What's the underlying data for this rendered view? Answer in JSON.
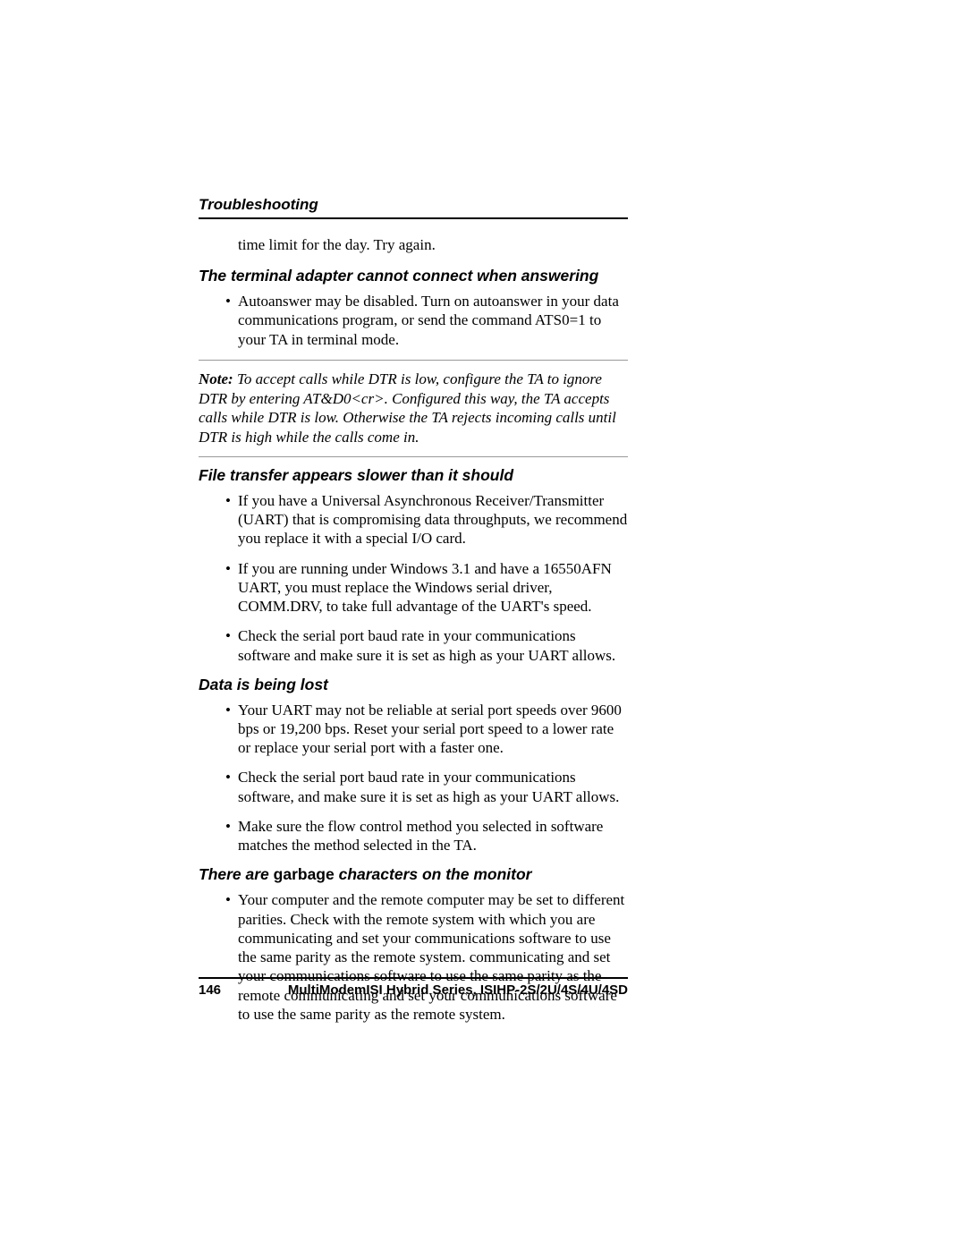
{
  "header": {
    "title": "Troubleshooting"
  },
  "continuation_text": "time limit for the day. Try again.",
  "sections": {
    "s1": {
      "heading": "The terminal adapter cannot connect when answering",
      "bullets": [
        "Autoanswer may be disabled. Turn on autoanswer in your data communications program, or send the command ATS0=1 to your TA in terminal mode."
      ]
    },
    "note": {
      "label": "Note:",
      "text": " To accept calls while DTR is low, configure the TA to ignore DTR by entering AT&D0<cr>. Configured this way, the TA accepts calls while DTR is low. Otherwise the TA rejects incoming calls until DTR is high while the calls come in."
    },
    "s2": {
      "heading": "File transfer appears slower than it should",
      "bullets": [
        "If you have a Universal Asynchronous Receiver/Transmitter (UART) that is compromising data throughputs, we recommend you replace it with a special I/O card.",
        "If you are running under Windows 3.1 and have a 16550AFN UART, you must replace the Windows serial driver, COMM.DRV, to take full advantage of the UART's speed.",
        "Check the serial port baud rate in your communications software and make sure it is set as high as your UART allows."
      ]
    },
    "s3": {
      "heading": "Data is being lost",
      "bullets": [
        "Your UART may not be reliable at serial port speeds over 9600 bps or 19,200 bps. Reset your serial port speed to a lower rate or replace your serial port with a faster one.",
        "Check the serial port baud rate in your communications software, and make sure it is set as high as your UART allows.",
        "Make sure the flow control method you selected in software matches the method selected in the TA."
      ]
    },
    "s4": {
      "heading_pre": "There are ",
      "heading_bold": "garbage",
      "heading_post": " characters on the monitor",
      "bullets": [
        "Your computer and the remote computer may be set to different parities. Check with the remote system with which you are communicating and set your communications software to use the same parity as the remote system. communicating and set your communications software to use the same parity as the remote communicating and set your communications software to use the same parity as the remote system."
      ]
    }
  },
  "footer": {
    "page_number": "146",
    "title": "MultiModemISI Hybrid Series, ISIHP-2S/2U/4S/4U/4SD"
  }
}
